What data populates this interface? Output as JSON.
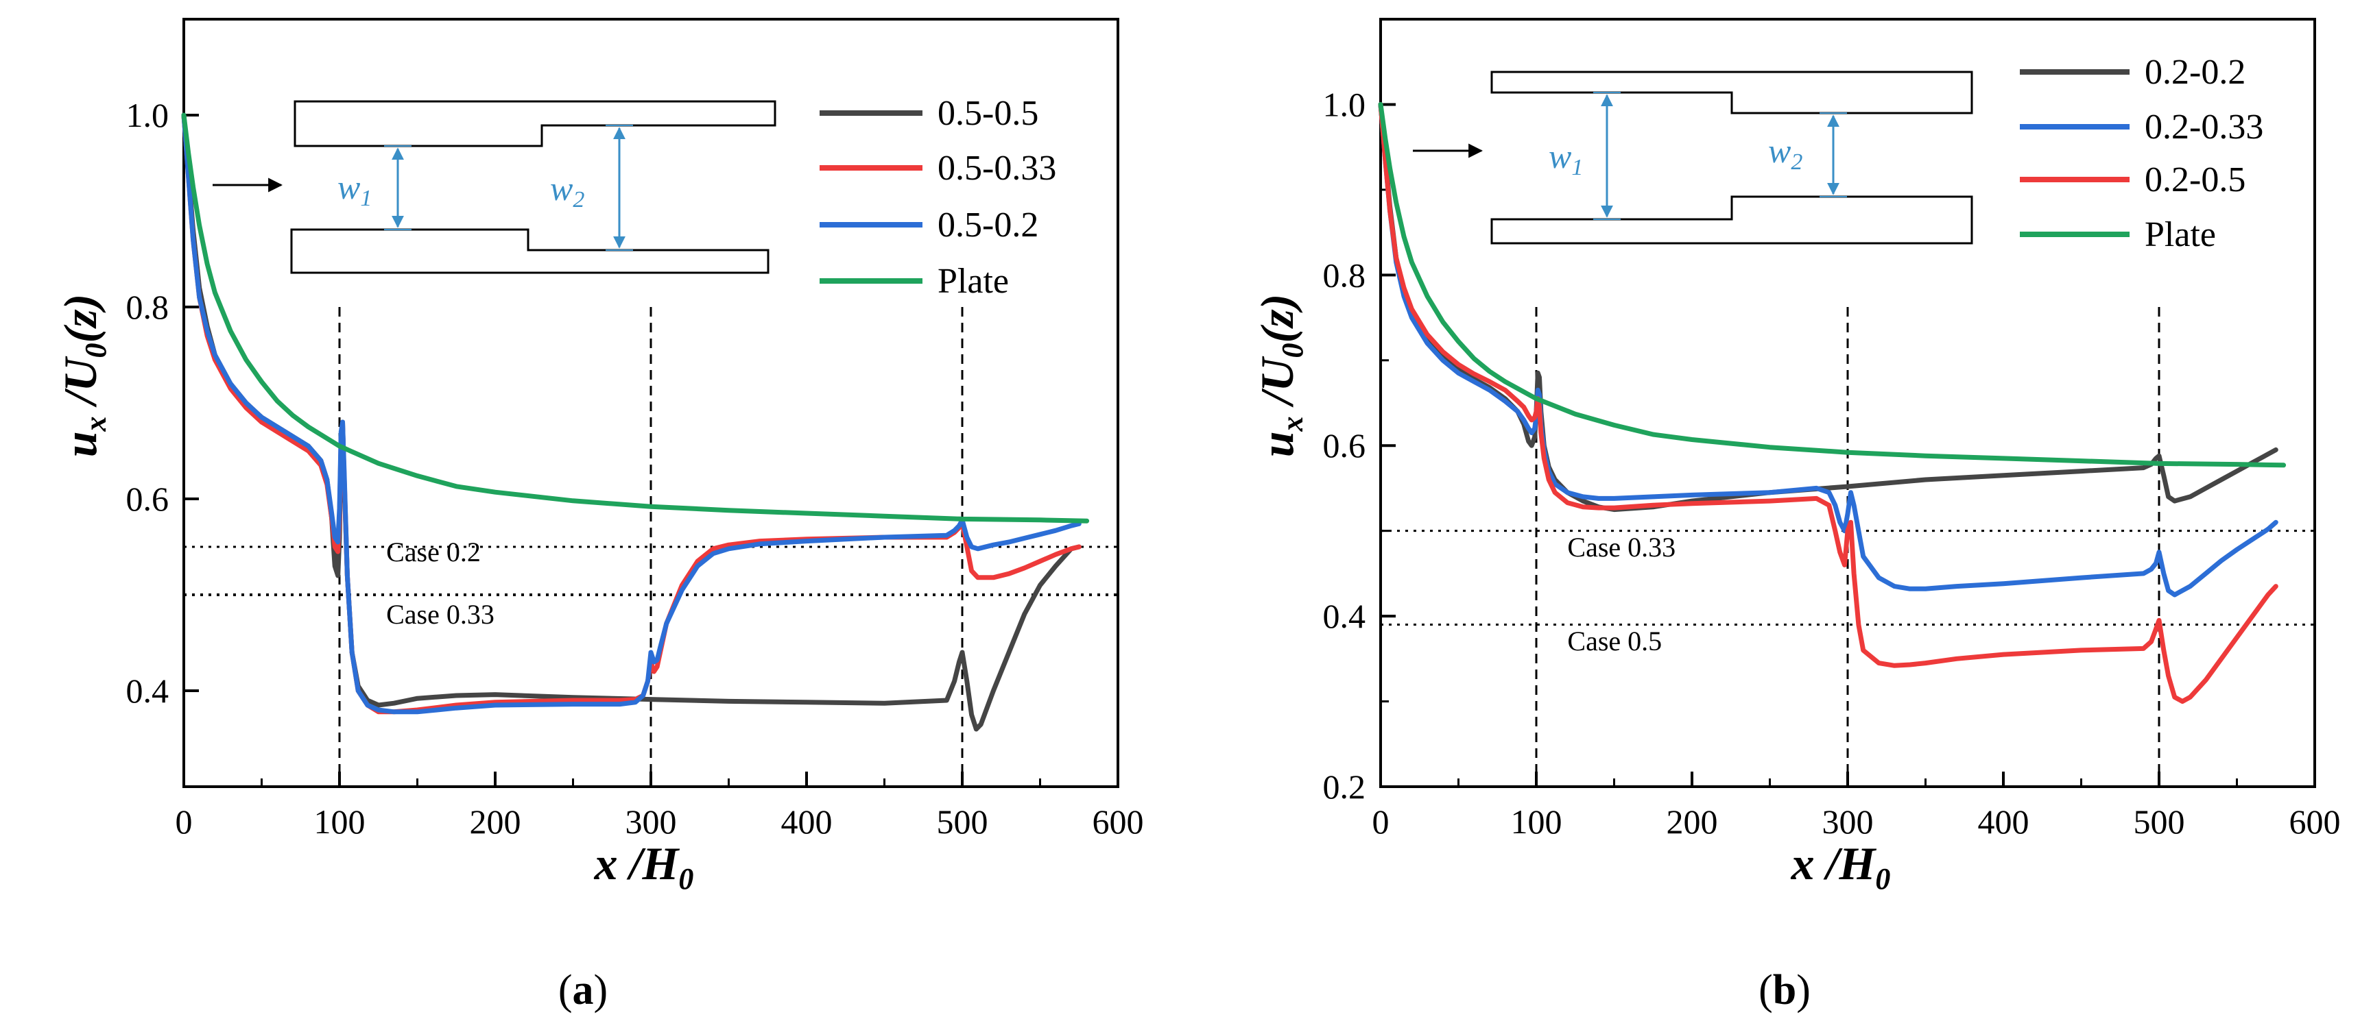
{
  "chart_data": [
    {
      "type": "line",
      "caption": "(a)",
      "caption_letter": "a",
      "xlabel": "x /H",
      "xlabel_sub": "0",
      "ylabel": "u",
      "ylabel_sub_x": "x",
      "ylabel_tail": " /U",
      "ylabel_sub_0": "0",
      "ylabel_end": "(z)",
      "xlim": [
        0,
        600
      ],
      "ylim": [
        0.3,
        1.1
      ],
      "xticks": [
        0,
        100,
        200,
        300,
        400,
        500,
        600
      ],
      "yticks": [
        0.4,
        0.6,
        0.8,
        1.0
      ],
      "ytick_labels": [
        "0.4",
        "0.6",
        "0.8",
        "1.0"
      ],
      "vlines": [
        100,
        300,
        500
      ],
      "hrefs": [
        {
          "y": 0.55,
          "label": "Case 0.2",
          "label_x": 130,
          "label_y": 0.535
        },
        {
          "y": 0.5,
          "label": "Case 0.33",
          "label_x": 130,
          "label_y": 0.47
        }
      ],
      "inset": {
        "w1": "w",
        "w1_sub": "1",
        "w2": "w",
        "w2_sub": "2"
      },
      "legend_position": "top-right",
      "series": [
        {
          "name": "0.5-0.5",
          "color": "#454545",
          "x": [
            0,
            3,
            6,
            10,
            15,
            20,
            30,
            40,
            50,
            60,
            70,
            80,
            88,
            92,
            95,
            97,
            99,
            100,
            101,
            102,
            103,
            105,
            108,
            112,
            118,
            125,
            135,
            150,
            175,
            200,
            250,
            300,
            350,
            400,
            450,
            490,
            495,
            498,
            500,
            503,
            506,
            509,
            512,
            520,
            530,
            540,
            550,
            560,
            570,
            575
          ],
          "y": [
            1.0,
            0.94,
            0.88,
            0.82,
            0.78,
            0.75,
            0.72,
            0.7,
            0.685,
            0.675,
            0.665,
            0.655,
            0.64,
            0.62,
            0.58,
            0.53,
            0.52,
            0.56,
            0.66,
            0.68,
            0.62,
            0.52,
            0.44,
            0.405,
            0.39,
            0.385,
            0.387,
            0.392,
            0.395,
            0.396,
            0.393,
            0.391,
            0.389,
            0.388,
            0.387,
            0.39,
            0.41,
            0.43,
            0.44,
            0.41,
            0.375,
            0.36,
            0.365,
            0.4,
            0.44,
            0.48,
            0.51,
            0.53,
            0.548,
            0.55
          ]
        },
        {
          "name": "0.5-0.33",
          "color": "#ee3a3a",
          "x": [
            0,
            3,
            6,
            10,
            15,
            20,
            30,
            40,
            50,
            60,
            70,
            80,
            88,
            92,
            95,
            97,
            99,
            100,
            101,
            102,
            103,
            105,
            108,
            112,
            118,
            125,
            135,
            150,
            175,
            200,
            250,
            280,
            290,
            295,
            298,
            300,
            302,
            304,
            306,
            310,
            320,
            330,
            340,
            350,
            370,
            400,
            450,
            490,
            495,
            498,
            500,
            503,
            506,
            510,
            520,
            530,
            540,
            550,
            560,
            570,
            575
          ],
          "y": [
            1.0,
            0.935,
            0.87,
            0.81,
            0.77,
            0.745,
            0.715,
            0.695,
            0.68,
            0.67,
            0.66,
            0.65,
            0.635,
            0.615,
            0.58,
            0.55,
            0.545,
            0.58,
            0.665,
            0.675,
            0.625,
            0.52,
            0.44,
            0.4,
            0.385,
            0.378,
            0.378,
            0.38,
            0.385,
            0.388,
            0.39,
            0.39,
            0.391,
            0.395,
            0.41,
            0.43,
            0.42,
            0.425,
            0.44,
            0.47,
            0.51,
            0.535,
            0.548,
            0.552,
            0.556,
            0.558,
            0.56,
            0.56,
            0.565,
            0.57,
            0.575,
            0.55,
            0.525,
            0.518,
            0.518,
            0.522,
            0.528,
            0.535,
            0.542,
            0.548,
            0.55
          ]
        },
        {
          "name": "0.5-0.2",
          "color": "#2c6ed6",
          "x": [
            0,
            3,
            6,
            10,
            15,
            20,
            30,
            40,
            50,
            60,
            70,
            80,
            88,
            92,
            95,
            97,
            99,
            100,
            101,
            102,
            103,
            105,
            108,
            112,
            118,
            125,
            135,
            150,
            175,
            200,
            250,
            280,
            290,
            295,
            298,
            300,
            302,
            304,
            306,
            310,
            320,
            330,
            340,
            350,
            370,
            400,
            450,
            490,
            495,
            498,
            500,
            503,
            506,
            510,
            520,
            530,
            540,
            550,
            560,
            570,
            575
          ],
          "y": [
            1.0,
            0.935,
            0.87,
            0.81,
            0.775,
            0.75,
            0.72,
            0.7,
            0.685,
            0.675,
            0.665,
            0.655,
            0.64,
            0.62,
            0.585,
            0.56,
            0.555,
            0.59,
            0.67,
            0.68,
            0.63,
            0.52,
            0.44,
            0.4,
            0.385,
            0.38,
            0.378,
            0.378,
            0.382,
            0.385,
            0.386,
            0.386,
            0.388,
            0.395,
            0.41,
            0.44,
            0.43,
            0.432,
            0.445,
            0.47,
            0.505,
            0.53,
            0.543,
            0.548,
            0.553,
            0.556,
            0.56,
            0.562,
            0.567,
            0.572,
            0.578,
            0.56,
            0.55,
            0.548,
            0.552,
            0.555,
            0.559,
            0.563,
            0.567,
            0.572,
            0.574
          ]
        },
        {
          "name": "Plate",
          "color": "#1fa35c",
          "x": [
            0,
            3,
            6,
            10,
            15,
            20,
            30,
            40,
            50,
            60,
            70,
            80,
            100,
            125,
            150,
            175,
            200,
            250,
            300,
            350,
            400,
            450,
            500,
            550,
            580
          ],
          "y": [
            1.0,
            0.96,
            0.925,
            0.885,
            0.845,
            0.815,
            0.775,
            0.745,
            0.722,
            0.702,
            0.687,
            0.675,
            0.655,
            0.637,
            0.624,
            0.613,
            0.607,
            0.598,
            0.592,
            0.588,
            0.585,
            0.582,
            0.579,
            0.578,
            0.577
          ]
        }
      ]
    },
    {
      "type": "line",
      "caption": "(b)",
      "caption_letter": "b",
      "xlabel": "x /H",
      "xlabel_sub": "0",
      "ylabel": "u",
      "ylabel_sub_x": "x",
      "ylabel_tail": " /U",
      "ylabel_sub_0": "0",
      "ylabel_end": "(z)",
      "xlim": [
        0,
        600
      ],
      "ylim": [
        0.2,
        1.1
      ],
      "xticks": [
        0,
        100,
        200,
        300,
        400,
        500,
        600
      ],
      "yticks": [
        0.2,
        0.4,
        0.6,
        0.8,
        1.0
      ],
      "ytick_labels": [
        "0.2",
        "0.4",
        "0.6",
        "0.8",
        "1.0"
      ],
      "vlines": [
        100,
        300,
        500
      ],
      "hrefs": [
        {
          "y": 0.5,
          "label": "Case 0.33",
          "label_x": 120,
          "label_y": 0.47
        },
        {
          "y": 0.39,
          "label": "Case 0.5",
          "label_x": 120,
          "label_y": 0.36
        }
      ],
      "inset": {
        "w1": "w",
        "w1_sub": "1",
        "w2": "w",
        "w2_sub": "2"
      },
      "legend_position": "top-right",
      "series": [
        {
          "name": "0.2-0.2",
          "color": "#454545",
          "x": [
            0,
            3,
            6,
            10,
            15,
            20,
            30,
            40,
            50,
            60,
            70,
            80,
            88,
            92,
            95,
            97,
            99,
            100,
            101,
            102,
            103,
            105,
            108,
            112,
            120,
            130,
            140,
            150,
            175,
            200,
            250,
            300,
            350,
            400,
            450,
            490,
            495,
            498,
            500,
            503,
            506,
            510,
            520,
            530,
            540,
            550,
            560,
            570,
            575
          ],
          "y": [
            1.0,
            0.94,
            0.88,
            0.82,
            0.78,
            0.755,
            0.725,
            0.705,
            0.69,
            0.678,
            0.668,
            0.655,
            0.64,
            0.625,
            0.605,
            0.6,
            0.61,
            0.64,
            0.685,
            0.68,
            0.64,
            0.6,
            0.575,
            0.56,
            0.545,
            0.535,
            0.528,
            0.525,
            0.528,
            0.535,
            0.545,
            0.552,
            0.56,
            0.565,
            0.57,
            0.574,
            0.578,
            0.585,
            0.588,
            0.565,
            0.54,
            0.535,
            0.54,
            0.55,
            0.56,
            0.57,
            0.58,
            0.59,
            0.595
          ]
        },
        {
          "name": "0.2-0.33",
          "color": "#2c6ed6",
          "x": [
            0,
            3,
            6,
            10,
            15,
            20,
            30,
            40,
            50,
            60,
            70,
            80,
            88,
            92,
            95,
            97,
            99,
            100,
            101,
            102,
            103,
            105,
            108,
            112,
            120,
            130,
            140,
            150,
            175,
            200,
            250,
            280,
            288,
            292,
            295,
            298,
            300,
            302,
            304,
            307,
            310,
            320,
            330,
            340,
            350,
            370,
            400,
            450,
            490,
            495,
            498,
            500,
            503,
            506,
            510,
            520,
            530,
            540,
            550,
            560,
            570,
            575
          ],
          "y": [
            1.0,
            0.935,
            0.875,
            0.815,
            0.775,
            0.75,
            0.72,
            0.7,
            0.685,
            0.675,
            0.665,
            0.652,
            0.64,
            0.63,
            0.62,
            0.615,
            0.62,
            0.635,
            0.665,
            0.66,
            0.625,
            0.595,
            0.57,
            0.555,
            0.545,
            0.54,
            0.538,
            0.538,
            0.54,
            0.542,
            0.545,
            0.55,
            0.545,
            0.53,
            0.51,
            0.5,
            0.52,
            0.545,
            0.53,
            0.5,
            0.47,
            0.445,
            0.435,
            0.432,
            0.432,
            0.435,
            0.438,
            0.445,
            0.45,
            0.455,
            0.462,
            0.475,
            0.45,
            0.43,
            0.425,
            0.435,
            0.45,
            0.465,
            0.478,
            0.49,
            0.502,
            0.51
          ]
        },
        {
          "name": "0.2-0.5",
          "color": "#ee3a3a",
          "x": [
            0,
            3,
            6,
            10,
            15,
            20,
            30,
            40,
            50,
            60,
            70,
            80,
            88,
            92,
            95,
            97,
            99,
            100,
            101,
            102,
            103,
            105,
            108,
            112,
            120,
            130,
            140,
            150,
            175,
            200,
            250,
            280,
            288,
            292,
            295,
            298,
            300,
            302,
            304,
            307,
            310,
            320,
            330,
            340,
            350,
            370,
            400,
            450,
            490,
            495,
            498,
            500,
            503,
            506,
            510,
            515,
            520,
            530,
            540,
            550,
            560,
            570,
            575
          ],
          "y": [
            1.0,
            0.935,
            0.875,
            0.82,
            0.785,
            0.76,
            0.73,
            0.71,
            0.695,
            0.684,
            0.675,
            0.665,
            0.652,
            0.645,
            0.635,
            0.63,
            0.633,
            0.64,
            0.655,
            0.645,
            0.615,
            0.585,
            0.56,
            0.545,
            0.533,
            0.528,
            0.527,
            0.527,
            0.53,
            0.532,
            0.535,
            0.538,
            0.53,
            0.5,
            0.475,
            0.46,
            0.5,
            0.51,
            0.45,
            0.39,
            0.36,
            0.345,
            0.342,
            0.343,
            0.345,
            0.35,
            0.355,
            0.36,
            0.362,
            0.37,
            0.385,
            0.395,
            0.36,
            0.33,
            0.305,
            0.3,
            0.305,
            0.325,
            0.35,
            0.375,
            0.4,
            0.425,
            0.435
          ]
        },
        {
          "name": "Plate",
          "color": "#1fa35c",
          "x": [
            0,
            3,
            6,
            10,
            15,
            20,
            30,
            40,
            50,
            60,
            70,
            80,
            100,
            125,
            150,
            175,
            200,
            250,
            300,
            350,
            400,
            450,
            500,
            550,
            580
          ],
          "y": [
            1.0,
            0.96,
            0.925,
            0.885,
            0.845,
            0.815,
            0.775,
            0.745,
            0.722,
            0.702,
            0.687,
            0.675,
            0.655,
            0.637,
            0.624,
            0.613,
            0.607,
            0.598,
            0.592,
            0.588,
            0.585,
            0.582,
            0.579,
            0.578,
            0.577
          ]
        }
      ]
    }
  ]
}
